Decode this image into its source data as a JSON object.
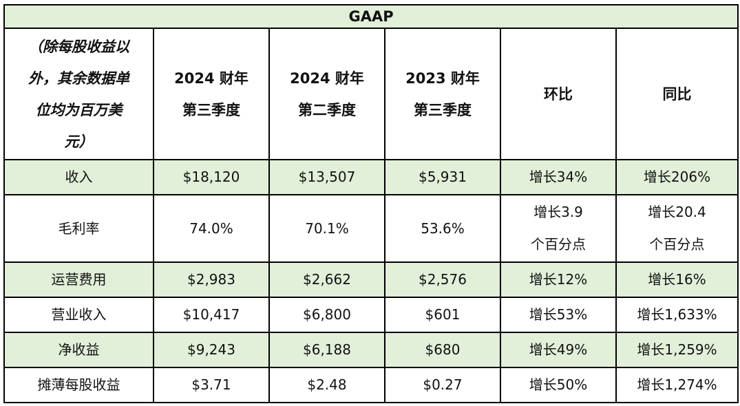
{
  "table": {
    "title": "GAAP",
    "header": {
      "unit_note": [
        "（除每股收益以",
        "外，其余数据单",
        "位均为百万美",
        "元）"
      ],
      "columns": [
        [
          "2024 财年",
          "第三季度"
        ],
        [
          "2024 财年",
          "第二季度"
        ],
        [
          "2023 财年",
          "第三季度"
        ],
        [
          "环比"
        ],
        [
          "同比"
        ]
      ]
    },
    "rows": [
      {
        "label": "收入",
        "values": [
          "$18,120",
          "$13,507",
          "$5,931"
        ],
        "qoq": [
          "增长34%"
        ],
        "yoy": [
          "增长206%"
        ],
        "shaded": true
      },
      {
        "label": "毛利率",
        "values": [
          "74.0%",
          "70.1%",
          "53.6%"
        ],
        "qoq": [
          "增长3.9",
          "个百分点"
        ],
        "yoy": [
          "增长20.4",
          "个百分点"
        ],
        "shaded": false
      },
      {
        "label": "运营费用",
        "values": [
          "$2,983",
          "$2,662",
          "$2,576"
        ],
        "qoq": [
          "增长12%"
        ],
        "yoy": [
          "增长16%"
        ],
        "shaded": true
      },
      {
        "label": "营业收入",
        "values": [
          "$10,417",
          "$6,800",
          "$601"
        ],
        "qoq": [
          "增长53%"
        ],
        "yoy": [
          "增长1,633%"
        ],
        "shaded": false
      },
      {
        "label": "净收益",
        "values": [
          "$9,243",
          "$6,188",
          "$680"
        ],
        "qoq": [
          "增长49%"
        ],
        "yoy": [
          "增长1,259%"
        ],
        "shaded": true
      },
      {
        "label": "摊薄每股收益",
        "values": [
          "$3.71",
          "$2.48",
          "$0.27"
        ],
        "qoq": [
          "增长50%"
        ],
        "yoy": [
          "增长1,274%"
        ],
        "shaded": false
      }
    ],
    "colors": {
      "shaded_row": "#e2efd9",
      "border": "#000000"
    }
  }
}
